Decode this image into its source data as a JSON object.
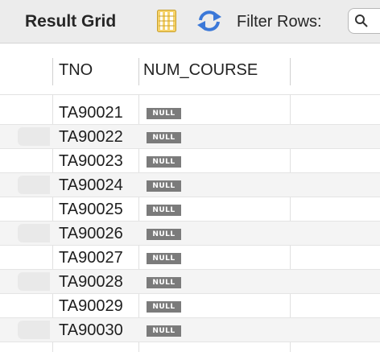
{
  "toolbar": {
    "title": "Result Grid",
    "filter_label": "Filter Rows:",
    "filter_placeholder": "",
    "icons": [
      "grid-form-icon",
      "refresh-icon",
      "search-field"
    ]
  },
  "grid": {
    "columns": [
      "TNO",
      "NUM_COURSE"
    ],
    "null_label": "NULL",
    "rows": [
      {
        "tno": "TA90021",
        "num_course": "NULL"
      },
      {
        "tno": "TA90022",
        "num_course": "NULL"
      },
      {
        "tno": "TA90023",
        "num_course": "NULL"
      },
      {
        "tno": "TA90024",
        "num_course": "NULL"
      },
      {
        "tno": "TA90025",
        "num_course": "NULL"
      },
      {
        "tno": "TA90026",
        "num_course": "NULL"
      },
      {
        "tno": "TA90027",
        "num_course": "NULL"
      },
      {
        "tno": "TA90028",
        "num_course": "NULL"
      },
      {
        "tno": "TA90029",
        "num_course": "NULL"
      },
      {
        "tno": "TA90030",
        "num_course": "NULL"
      }
    ]
  },
  "colors": {
    "toolbar_bg": "#ececec",
    "null_badge": "#7b7b7b",
    "grid_icon": "#f2c744",
    "refresh_icon": "#3b78d8"
  }
}
